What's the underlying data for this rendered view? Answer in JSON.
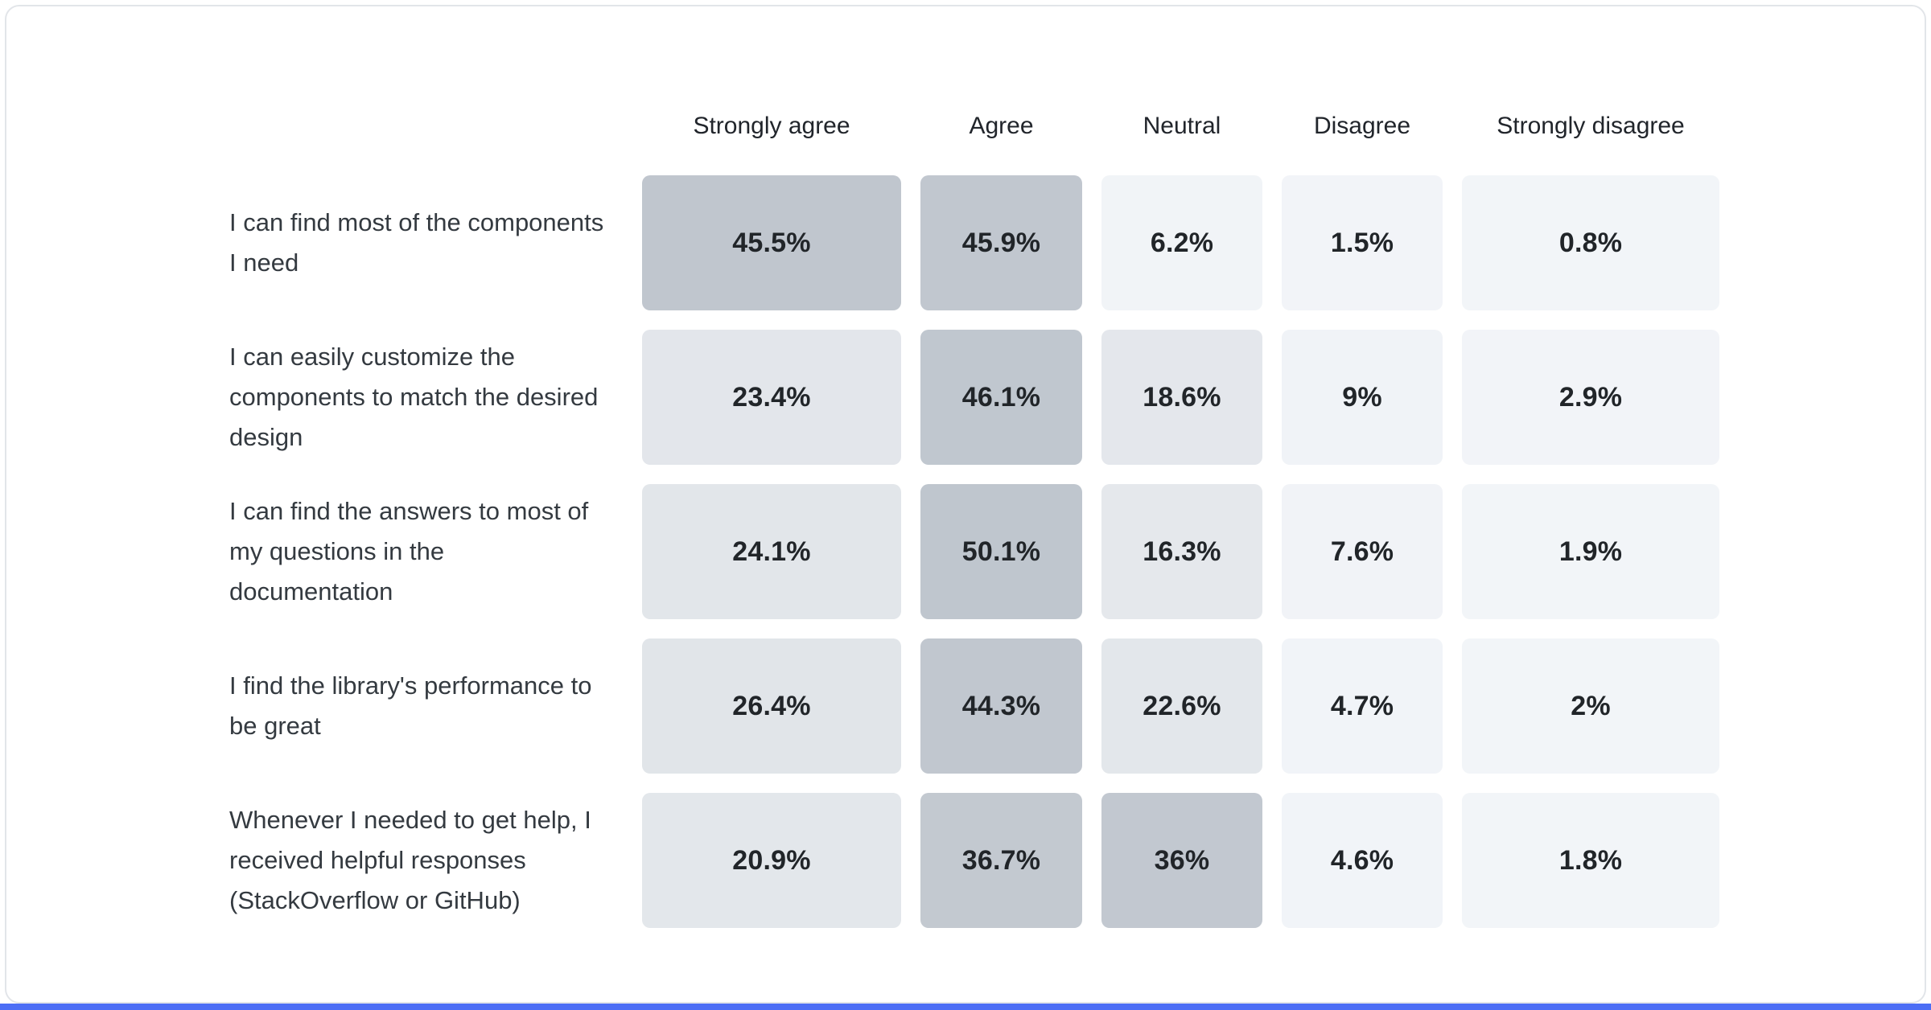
{
  "page": {
    "background": "#ffffff",
    "card_border_color": "#e2e5e9",
    "accent_bar_color": "#4c6ef5"
  },
  "chart_data": {
    "type": "heatmap",
    "title": "",
    "value_unit": "%",
    "legend_position": "none",
    "grid": false,
    "columns": [
      "Strongly agree",
      "Agree",
      "Neutral",
      "Disagree",
      "Strongly disagree"
    ],
    "color_scale": {
      "high": "#bfc6ce",
      "mid": "#e4e7eb",
      "low": "#f2f5f8"
    },
    "rows": [
      {
        "label": "I can find most of the components I need",
        "values": [
          45.5,
          45.9,
          6.2,
          1.5,
          0.8
        ],
        "display": [
          "45.5%",
          "45.9%",
          "6.2%",
          "1.5%",
          "0.8%"
        ],
        "colors": [
          "#c0c6ce",
          "#c1c7cf",
          "#f1f4f7",
          "#f2f4f8",
          "#f2f5f8"
        ]
      },
      {
        "label": "I can easily customize the components to match the desired design",
        "values": [
          23.4,
          46.1,
          18.6,
          9,
          2.9
        ],
        "display": [
          "23.4%",
          "46.1%",
          "18.6%",
          "9%",
          "2.9%"
        ],
        "colors": [
          "#e3e6eb",
          "#c0c7cf",
          "#e4e7ec",
          "#f0f3f7",
          "#f2f4f8"
        ]
      },
      {
        "label": "I can find the answers to most of my questions in the documentation",
        "values": [
          24.1,
          50.1,
          16.3,
          7.6,
          1.9
        ],
        "display": [
          "24.1%",
          "50.1%",
          "16.3%",
          "7.6%",
          "1.9%"
        ],
        "colors": [
          "#e2e6ea",
          "#bfc6ce",
          "#e5e8ec",
          "#f1f3f7",
          "#f2f5f8"
        ]
      },
      {
        "label": "I find the library's performance to be great",
        "values": [
          26.4,
          44.3,
          22.6,
          4.7,
          2
        ],
        "display": [
          "26.4%",
          "44.3%",
          "22.6%",
          "4.7%",
          "2%"
        ],
        "colors": [
          "#e1e5e9",
          "#c1c7cf",
          "#e3e7eb",
          "#f1f4f8",
          "#f2f5f8"
        ]
      },
      {
        "label": "Whenever I needed to get help, I received helpful responses (StackOverflow or GitHub)",
        "values": [
          20.9,
          36.7,
          36,
          4.6,
          1.8
        ],
        "display": [
          "20.9%",
          "36.7%",
          "36%",
          "4.6%",
          "1.8%"
        ],
        "colors": [
          "#e3e7eb",
          "#c3c9d0",
          "#c2c8d0",
          "#f1f4f8",
          "#f2f5f8"
        ]
      }
    ]
  }
}
